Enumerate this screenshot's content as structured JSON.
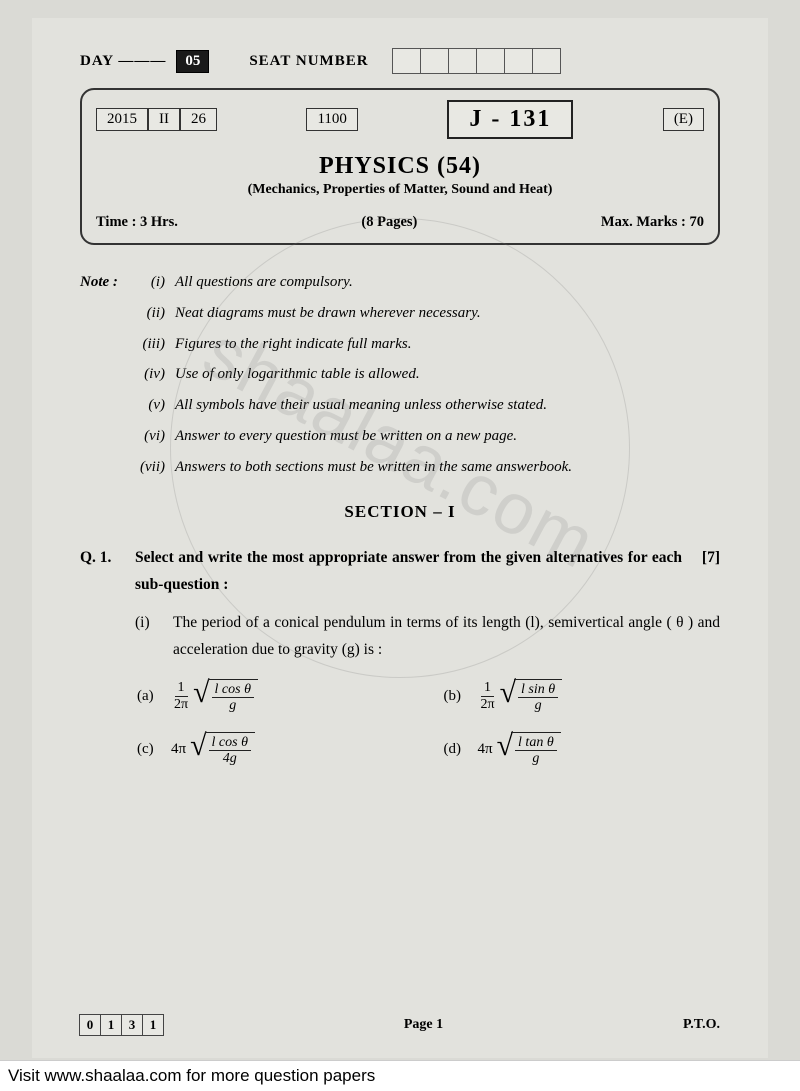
{
  "top": {
    "day_label": "DAY ———",
    "day_value": "05",
    "seat_label": "SEAT NUMBER",
    "seat_cells": 6
  },
  "header": {
    "year": "2015",
    "month": "II",
    "date": "26",
    "code_small": "1100",
    "paper_code": "J - 131",
    "lang": "(E)",
    "subject": "PHYSICS (54)",
    "subtitle": "(Mechanics, Properties of Matter, Sound and Heat)",
    "time": "Time : 3 Hrs.",
    "pages": "(8 Pages)",
    "marks": "Max. Marks : 70"
  },
  "notes": {
    "lead": "Note :",
    "items": [
      {
        "n": "(i)",
        "t": "All questions are compulsory."
      },
      {
        "n": "(ii)",
        "t": "Neat diagrams must be drawn wherever necessary."
      },
      {
        "n": "(iii)",
        "t": "Figures to the right indicate full marks."
      },
      {
        "n": "(iv)",
        "t": "Use of only logarithmic table is allowed."
      },
      {
        "n": "(v)",
        "t": "All symbols have their usual meaning unless otherwise stated."
      },
      {
        "n": "(vi)",
        "t": "Answer to every question must be written on a new page."
      },
      {
        "n": "(vii)",
        "t": "Answers to both sections must be written in the same answerbook."
      }
    ]
  },
  "section": "SECTION – I",
  "q1": {
    "label": "Q. 1.",
    "text": "Select and write the most appropriate answer from the given alternatives for each sub-question :",
    "marks": "[7]",
    "sub": {
      "n": "(i)",
      "text": "The period of a conical pendulum in terms of its length (l), semivertical angle ( θ ) and acceleration due to gravity (g) is :"
    },
    "options": {
      "a": {
        "label": "(a)",
        "pre": "1",
        "pre_den": "2π",
        "num": "l cos θ",
        "den": "g"
      },
      "b": {
        "label": "(b)",
        "pre": "1",
        "pre_den": "2π",
        "num": "l sin θ",
        "den": "g"
      },
      "c": {
        "label": "(c)",
        "coef": "4π",
        "num": "l cos θ",
        "den": "4g"
      },
      "d": {
        "label": "(d)",
        "coef": "4π",
        "num": "l tan θ",
        "den": "g"
      }
    }
  },
  "footer": {
    "code": [
      "0",
      "1",
      "3",
      "1"
    ],
    "page": "Page 1",
    "pto": "P.T.O."
  },
  "visit": "Visit www.shaalaa.com for more question papers"
}
